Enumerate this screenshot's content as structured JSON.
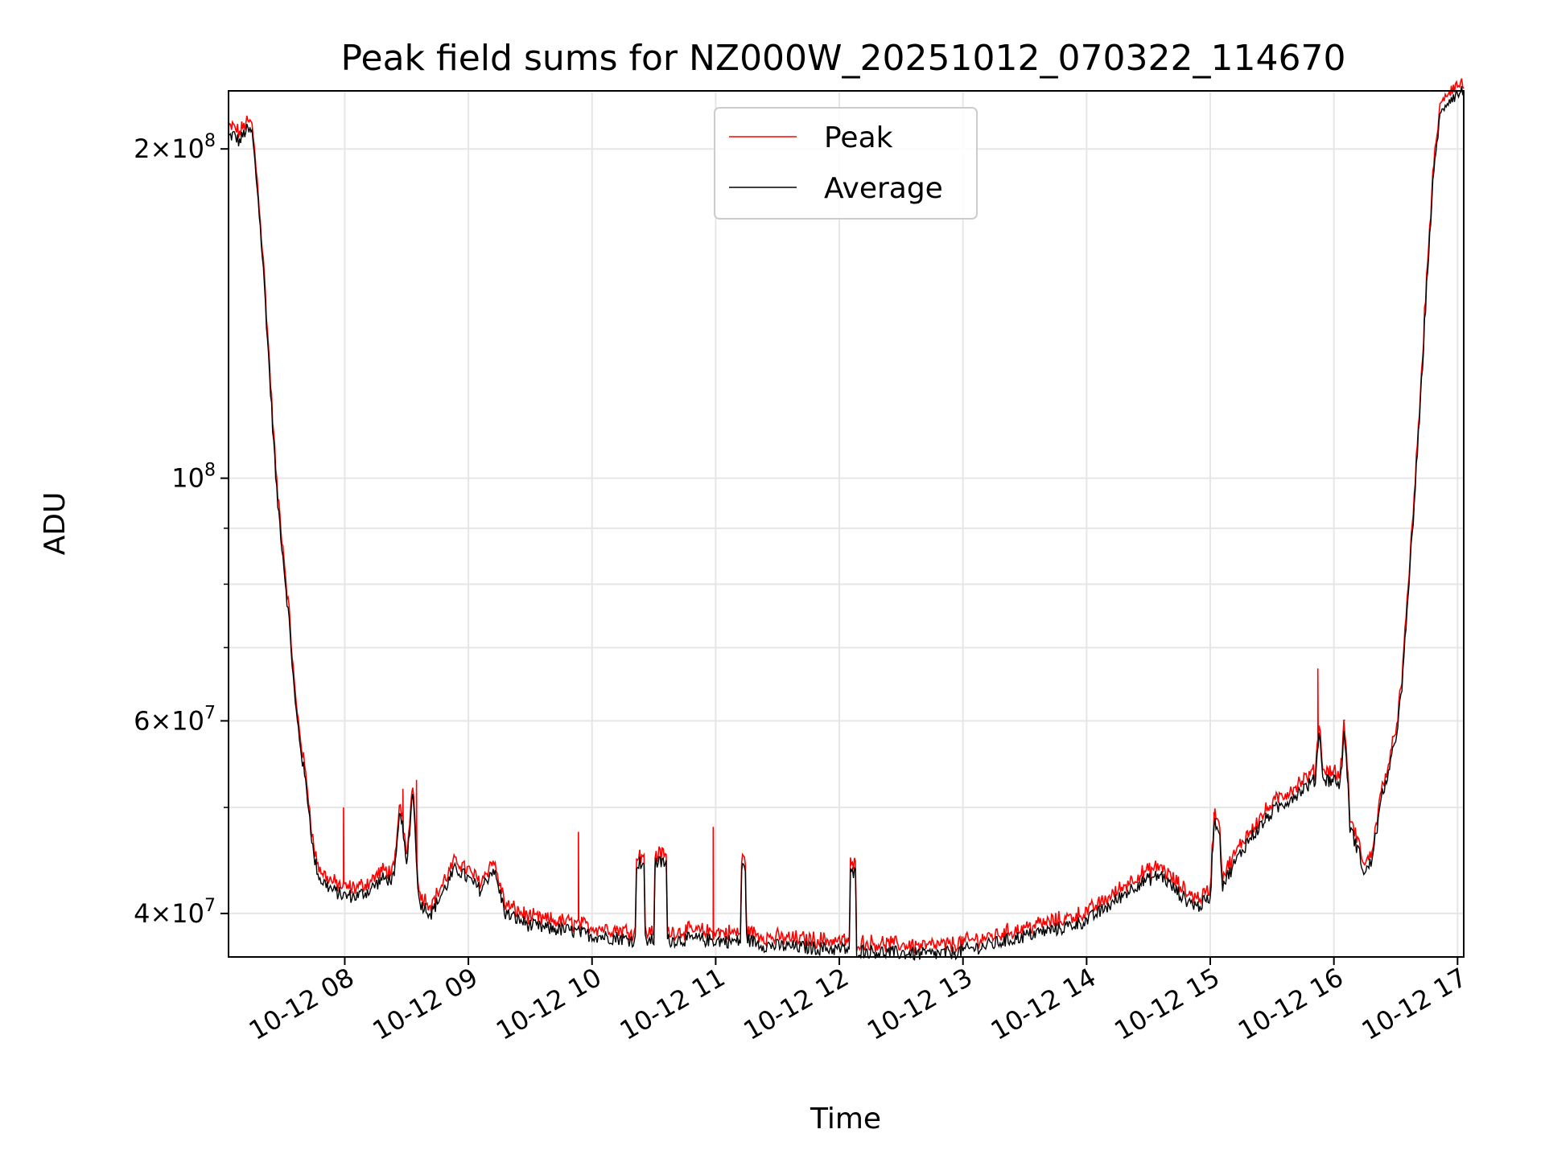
{
  "chart_data": {
    "type": "line",
    "title": "Peak field sums for NZ000W_20251012_070322_114670",
    "xlabel": "Time",
    "ylabel": "ADU",
    "yscale": "log",
    "xlim": [
      7.06,
      17.05
    ],
    "ylim": [
      36500000,
      226000000
    ],
    "grid": true,
    "legend_position": "top-center",
    "x_ticks": [
      {
        "value": 8,
        "label": "10-12 08"
      },
      {
        "value": 9,
        "label": "10-12 09"
      },
      {
        "value": 10,
        "label": "10-12 10"
      },
      {
        "value": 11,
        "label": "10-12 11"
      },
      {
        "value": 12,
        "label": "10-12 12"
      },
      {
        "value": 13,
        "label": "10-12 13"
      },
      {
        "value": 14,
        "label": "10-12 14"
      },
      {
        "value": 15,
        "label": "10-12 15"
      },
      {
        "value": 16,
        "label": "10-12 16"
      },
      {
        "value": 17,
        "label": "10-12 17"
      }
    ],
    "y_ticks": [
      {
        "value": 40000000,
        "mant": "4",
        "exp": "7"
      },
      {
        "value": 60000000,
        "mant": "6",
        "exp": "7"
      },
      {
        "value": 100000000,
        "mant": "",
        "exp": "8"
      },
      {
        "value": 200000000,
        "mant": "2",
        "exp": "8"
      }
    ],
    "y_minor_ticks": [
      50000000,
      70000000,
      80000000,
      90000000
    ],
    "series": [
      {
        "name": "Peak",
        "color": "#ff0000"
      },
      {
        "name": "Average",
        "color": "#000000"
      }
    ],
    "average_points": [
      [
        7.06,
        205000000
      ],
      [
        7.1,
        206000000
      ],
      [
        7.15,
        203000000
      ],
      [
        7.2,
        208000000
      ],
      [
        7.25,
        207000000
      ],
      [
        7.3,
        180000000
      ],
      [
        7.35,
        150000000
      ],
      [
        7.4,
        120000000
      ],
      [
        7.45,
        97000000
      ],
      [
        7.5,
        85000000
      ],
      [
        7.55,
        74000000
      ],
      [
        7.6,
        62000000
      ],
      [
        7.65,
        56000000
      ],
      [
        7.7,
        51000000
      ],
      [
        7.75,
        45000000
      ],
      [
        7.8,
        43000000
      ],
      [
        7.9,
        42000000
      ],
      [
        8.0,
        41500000
      ],
      [
        8.1,
        41500000
      ],
      [
        8.2,
        42000000
      ],
      [
        8.3,
        43000000
      ],
      [
        8.4,
        43000000
      ],
      [
        8.45,
        50000000
      ],
      [
        8.5,
        44000000
      ],
      [
        8.55,
        52000000
      ],
      [
        8.6,
        41000000
      ],
      [
        8.7,
        40000000
      ],
      [
        8.8,
        42000000
      ],
      [
        8.9,
        44000000
      ],
      [
        9.0,
        43000000
      ],
      [
        9.1,
        42000000
      ],
      [
        9.2,
        44000000
      ],
      [
        9.3,
        40000000
      ],
      [
        9.4,
        39500000
      ],
      [
        9.5,
        39000000
      ],
      [
        9.6,
        38800000
      ],
      [
        9.7,
        38700000
      ],
      [
        9.8,
        38600000
      ],
      [
        9.9,
        38400000
      ],
      [
        10.0,
        38200000
      ],
      [
        10.2,
        38000000
      ],
      [
        10.35,
        37800000
      ],
      [
        10.36,
        44500000
      ],
      [
        10.42,
        44500000
      ],
      [
        10.43,
        37800000
      ],
      [
        10.5,
        37800000
      ],
      [
        10.51,
        44500000
      ],
      [
        10.6,
        44500000
      ],
      [
        10.61,
        37800000
      ],
      [
        10.8,
        37900000
      ],
      [
        11.0,
        37800000
      ],
      [
        11.2,
        37700000
      ],
      [
        11.21,
        44000000
      ],
      [
        11.24,
        44000000
      ],
      [
        11.25,
        37900000
      ],
      [
        11.4,
        37400000
      ],
      [
        11.6,
        37300000
      ],
      [
        11.8,
        37200000
      ],
      [
        12.0,
        37100000
      ],
      [
        12.08,
        37100000
      ],
      [
        12.09,
        43500000
      ],
      [
        12.13,
        43500000
      ],
      [
        12.14,
        37000000
      ],
      [
        12.3,
        36900000
      ],
      [
        12.5,
        36800000
      ],
      [
        12.7,
        36700000
      ],
      [
        12.9,
        36800000
      ],
      [
        13.0,
        37000000
      ],
      [
        13.2,
        37400000
      ],
      [
        13.4,
        37900000
      ],
      [
        13.6,
        38400000
      ],
      [
        13.8,
        38800000
      ],
      [
        14.0,
        39400000
      ],
      [
        14.2,
        40800000
      ],
      [
        14.4,
        42500000
      ],
      [
        14.6,
        43400000
      ],
      [
        14.7,
        42200000
      ],
      [
        14.8,
        41200000
      ],
      [
        14.9,
        40600000
      ],
      [
        15.0,
        41300000
      ],
      [
        15.03,
        48500000
      ],
      [
        15.07,
        48000000
      ],
      [
        15.1,
        42500000
      ],
      [
        15.2,
        44500000
      ],
      [
        15.3,
        46500000
      ],
      [
        15.4,
        48000000
      ],
      [
        15.5,
        49500000
      ],
      [
        15.6,
        50500000
      ],
      [
        15.7,
        51500000
      ],
      [
        15.8,
        52500000
      ],
      [
        15.85,
        53000000
      ],
      [
        15.88,
        59000000
      ],
      [
        15.9,
        55000000
      ],
      [
        15.92,
        53000000
      ],
      [
        16.0,
        53000000
      ],
      [
        16.05,
        52500000
      ],
      [
        16.08,
        58000000
      ],
      [
        16.1,
        56000000
      ],
      [
        16.13,
        48000000
      ],
      [
        16.2,
        45500000
      ],
      [
        16.25,
        43500000
      ],
      [
        16.3,
        44500000
      ],
      [
        16.35,
        48000000
      ],
      [
        16.4,
        52000000
      ],
      [
        16.45,
        54000000
      ],
      [
        16.5,
        58000000
      ],
      [
        16.55,
        64000000
      ],
      [
        16.6,
        78000000
      ],
      [
        16.65,
        95000000
      ],
      [
        16.7,
        117000000
      ],
      [
        16.75,
        150000000
      ],
      [
        16.8,
        185000000
      ],
      [
        16.85,
        212000000
      ],
      [
        16.9,
        220000000
      ],
      [
        16.95,
        223000000
      ],
      [
        17.05,
        226000000
      ]
    ],
    "peak_spikes": [
      [
        7.99,
        50000000
      ],
      [
        8.47,
        52000000
      ],
      [
        8.58,
        53000000
      ],
      [
        9.89,
        47500000
      ],
      [
        10.98,
        48000000
      ],
      [
        15.03,
        49500000
      ],
      [
        15.87,
        67000000
      ],
      [
        16.08,
        60000000
      ]
    ]
  }
}
